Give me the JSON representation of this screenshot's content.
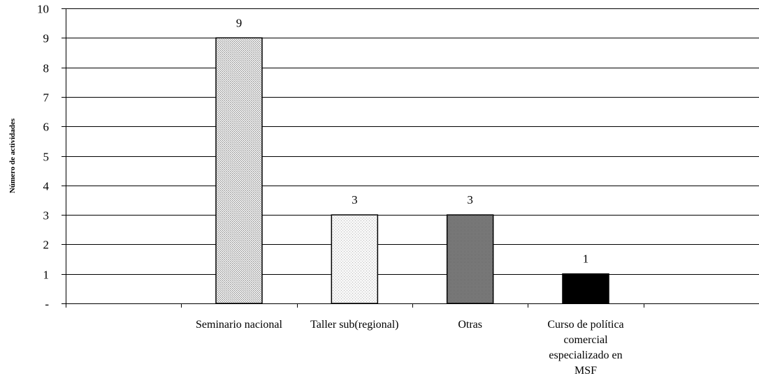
{
  "chart_data": {
    "type": "bar",
    "title": "",
    "xlabel": "",
    "ylabel": "Número de actividades",
    "ylim": [
      0,
      10
    ],
    "yticks": [
      "-",
      "1",
      "2",
      "3",
      "4",
      "5",
      "6",
      "7",
      "8",
      "9",
      "10"
    ],
    "grid": true,
    "legend": "none",
    "slots": 6,
    "categories": [
      {
        "slot": 0,
        "label_lines": []
      },
      {
        "slot": 1,
        "label_lines": [
          "Seminario nacional"
        ]
      },
      {
        "slot": 2,
        "label_lines": [
          "Taller sub(regional)"
        ]
      },
      {
        "slot": 3,
        "label_lines": [
          "Otras"
        ]
      },
      {
        "slot": 4,
        "label_lines": [
          "Curso de política",
          "comercial",
          "especializado en",
          "MSF"
        ]
      },
      {
        "slot": 5,
        "label_lines": []
      }
    ],
    "bars": [
      {
        "slot": 1,
        "category": "Seminario nacional",
        "value": 9,
        "label": "9",
        "fill": "pattern-fine",
        "color": "#d8d8d8"
      },
      {
        "slot": 2,
        "category": "Taller sub(regional)",
        "value": 3,
        "label": "3",
        "fill": "pattern-dots",
        "color": "#ececec"
      },
      {
        "slot": 3,
        "category": "Otras",
        "value": 3,
        "label": "3",
        "fill": "pattern-dark",
        "color": "#7a7a7a"
      },
      {
        "slot": 4,
        "category": "Curso de política comercial especializado en MSF",
        "value": 1,
        "label": "1",
        "fill": "solid",
        "color": "#000000"
      }
    ]
  }
}
